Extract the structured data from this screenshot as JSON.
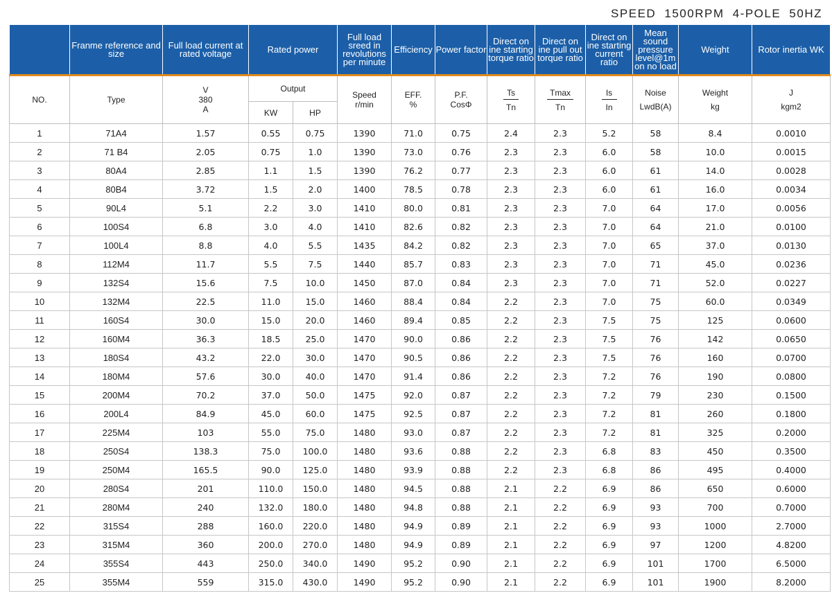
{
  "title": "SPEED  1500RPM   4-POLE   50HZ",
  "header_top": {
    "frame": "Franme reference and size",
    "current": "Full load current at rated voltage",
    "power": "Rated power",
    "speed": "Full load sreed in revolutions per minute",
    "efficiency": "Efficiency",
    "pf": "Power factor",
    "ts_ratio": "Direct on ine starting torque ratio",
    "tmax_ratio": "Direct on ine pull out torque ratio",
    "is_ratio": "Direct on ine starting current ratio",
    "noise": "Mean sound pressure level@1m on no load",
    "weight": "Weight",
    "inertia": "Rotor inertia WK"
  },
  "header_sub": {
    "no": "NO.",
    "type": "Type",
    "v": "V",
    "v380": "380",
    "a": "A",
    "output": "Output",
    "kw": "KW",
    "hp": "HP",
    "speed": "Speed",
    "speed_unit": "r/min",
    "eff": "EFF.",
    "eff_unit": "%",
    "pf": "P.F.",
    "pf_unit": "CosΦ",
    "ts": "Ts",
    "ts_den": "Tn",
    "tmax": "Tmax",
    "tmax_den": "Tn",
    "is": "Is",
    "is_den": "In",
    "noise": "Noise",
    "noise_unit": "LwdB(A)",
    "weight": "Weight",
    "weight_unit": "kg",
    "j": "J",
    "j_unit": "kgm2"
  },
  "rows": [
    [
      "1",
      "71A4",
      "1.57",
      "0.55",
      "0.75",
      "1390",
      "71.0",
      "0.75",
      "2.4",
      "2.3",
      "5.2",
      "58",
      "8.4",
      "0.0010"
    ],
    [
      "2",
      "71 B4",
      "2.05",
      "0.75",
      "1.0",
      "1390",
      "73.0",
      "0.76",
      "2.3",
      "2.3",
      "6.0",
      "58",
      "10.0",
      "0.0015"
    ],
    [
      "3",
      "80A4",
      "2.85",
      "1.1",
      "1.5",
      "1390",
      "76.2",
      "0.77",
      "2.3",
      "2.3",
      "6.0",
      "61",
      "14.0",
      "0.0028"
    ],
    [
      "4",
      "80B4",
      "3.72",
      "1.5",
      "2.0",
      "1400",
      "78.5",
      "0.78",
      "2.3",
      "2.3",
      "6.0",
      "61",
      "16.0",
      "0.0034"
    ],
    [
      "5",
      "90L4",
      "5.1",
      "2.2",
      "3.0",
      "1410",
      "80.0",
      "0.81",
      "2.3",
      "2.3",
      "7.0",
      "64",
      "17.0",
      "0.0056"
    ],
    [
      "6",
      "100S4",
      "6.8",
      "3.0",
      "4.0",
      "1410",
      "82.6",
      "0.82",
      "2.3",
      "2.3",
      "7.0",
      "64",
      "21.0",
      "0.0100"
    ],
    [
      "7",
      "100L4",
      "8.8",
      "4.0",
      "5.5",
      "1435",
      "84.2",
      "0.82",
      "2.3",
      "2.3",
      "7.0",
      "65",
      "37.0",
      "0.0130"
    ],
    [
      "8",
      "112M4",
      "11.7",
      "5.5",
      "7.5",
      "1440",
      "85.7",
      "0.83",
      "2.3",
      "2.3",
      "7.0",
      "71",
      "45.0",
      "0.0236"
    ],
    [
      "9",
      "132S4",
      "15.6",
      "7.5",
      "10.0",
      "1450",
      "87.0",
      "0.84",
      "2.3",
      "2.3",
      "7.0",
      "71",
      "52.0",
      "0.0227"
    ],
    [
      "10",
      "132M4",
      "22.5",
      "11.0",
      "15.0",
      "1460",
      "88.4",
      "0.84",
      "2.2",
      "2.3",
      "7.0",
      "75",
      "60.0",
      "0.0349"
    ],
    [
      "11",
      "160S4",
      "30.0",
      "15.0",
      "20.0",
      "1460",
      "89.4",
      "0.85",
      "2.2",
      "2.3",
      "7.5",
      "75",
      "125",
      "0.0600"
    ],
    [
      "12",
      "160M4",
      "36.3",
      "18.5",
      "25.0",
      "1470",
      "90.0",
      "0.86",
      "2.2",
      "2.3",
      "7.5",
      "76",
      "142",
      "0.0650"
    ],
    [
      "13",
      "180S4",
      "43.2",
      "22.0",
      "30.0",
      "1470",
      "90.5",
      "0.86",
      "2.2",
      "2.3",
      "7.5",
      "76",
      "160",
      "0.0700"
    ],
    [
      "14",
      "180M4",
      "57.6",
      "30.0",
      "40.0",
      "1470",
      "91.4",
      "0.86",
      "2.2",
      "2.3",
      "7.2",
      "76",
      "190",
      "0.0800"
    ],
    [
      "15",
      "200M4",
      "70.2",
      "37.0",
      "50.0",
      "1475",
      "92.0",
      "0.87",
      "2.2",
      "2.3",
      "7.2",
      "79",
      "230",
      "0.1500"
    ],
    [
      "16",
      "200L4",
      "84.9",
      "45.0",
      "60.0",
      "1475",
      "92.5",
      "0.87",
      "2.2",
      "2.3",
      "7.2",
      "81",
      "260",
      "0.1800"
    ],
    [
      "17",
      "225M4",
      "103",
      "55.0",
      "75.0",
      "1480",
      "93.0",
      "0.87",
      "2.2",
      "2.3",
      "7.2",
      "81",
      "325",
      "0.2000"
    ],
    [
      "18",
      "250S4",
      "138.3",
      "75.0",
      "100.0",
      "1480",
      "93.6",
      "0.88",
      "2.2",
      "2.3",
      "6.8",
      "83",
      "450",
      "0.3500"
    ],
    [
      "19",
      "250M4",
      "165.5",
      "90.0",
      "125.0",
      "1480",
      "93.9",
      "0.88",
      "2.2",
      "2.3",
      "6.8",
      "86",
      "495",
      "0.4000"
    ],
    [
      "20",
      "280S4",
      "201",
      "110.0",
      "150.0",
      "1480",
      "94.5",
      "0.88",
      "2.1",
      "2.2",
      "6.9",
      "86",
      "650",
      "0.6000"
    ],
    [
      "21",
      "280M4",
      "240",
      "132.0",
      "180.0",
      "1480",
      "94.8",
      "0.88",
      "2.1",
      "2.2",
      "6.9",
      "93",
      "700",
      "0.7000"
    ],
    [
      "22",
      "315S4",
      "288",
      "160.0",
      "220.0",
      "1480",
      "94.9",
      "0.89",
      "2.1",
      "2.2",
      "6.9",
      "93",
      "1000",
      "2.7000"
    ],
    [
      "23",
      "315M4",
      "360",
      "200.0",
      "270.0",
      "1480",
      "94.9",
      "0.89",
      "2.1",
      "2.2",
      "6.9",
      "97",
      "1200",
      "4.8200"
    ],
    [
      "24",
      "355S4",
      "443",
      "250.0",
      "340.0",
      "1490",
      "95.2",
      "0.90",
      "2.1",
      "2.2",
      "6.9",
      "101",
      "1700",
      "6.5000"
    ],
    [
      "25",
      "355M4",
      "559",
      "315.0",
      "430.0",
      "1490",
      "95.2",
      "0.90",
      "2.1",
      "2.2",
      "6.9",
      "101",
      "1900",
      "8.2000"
    ]
  ]
}
